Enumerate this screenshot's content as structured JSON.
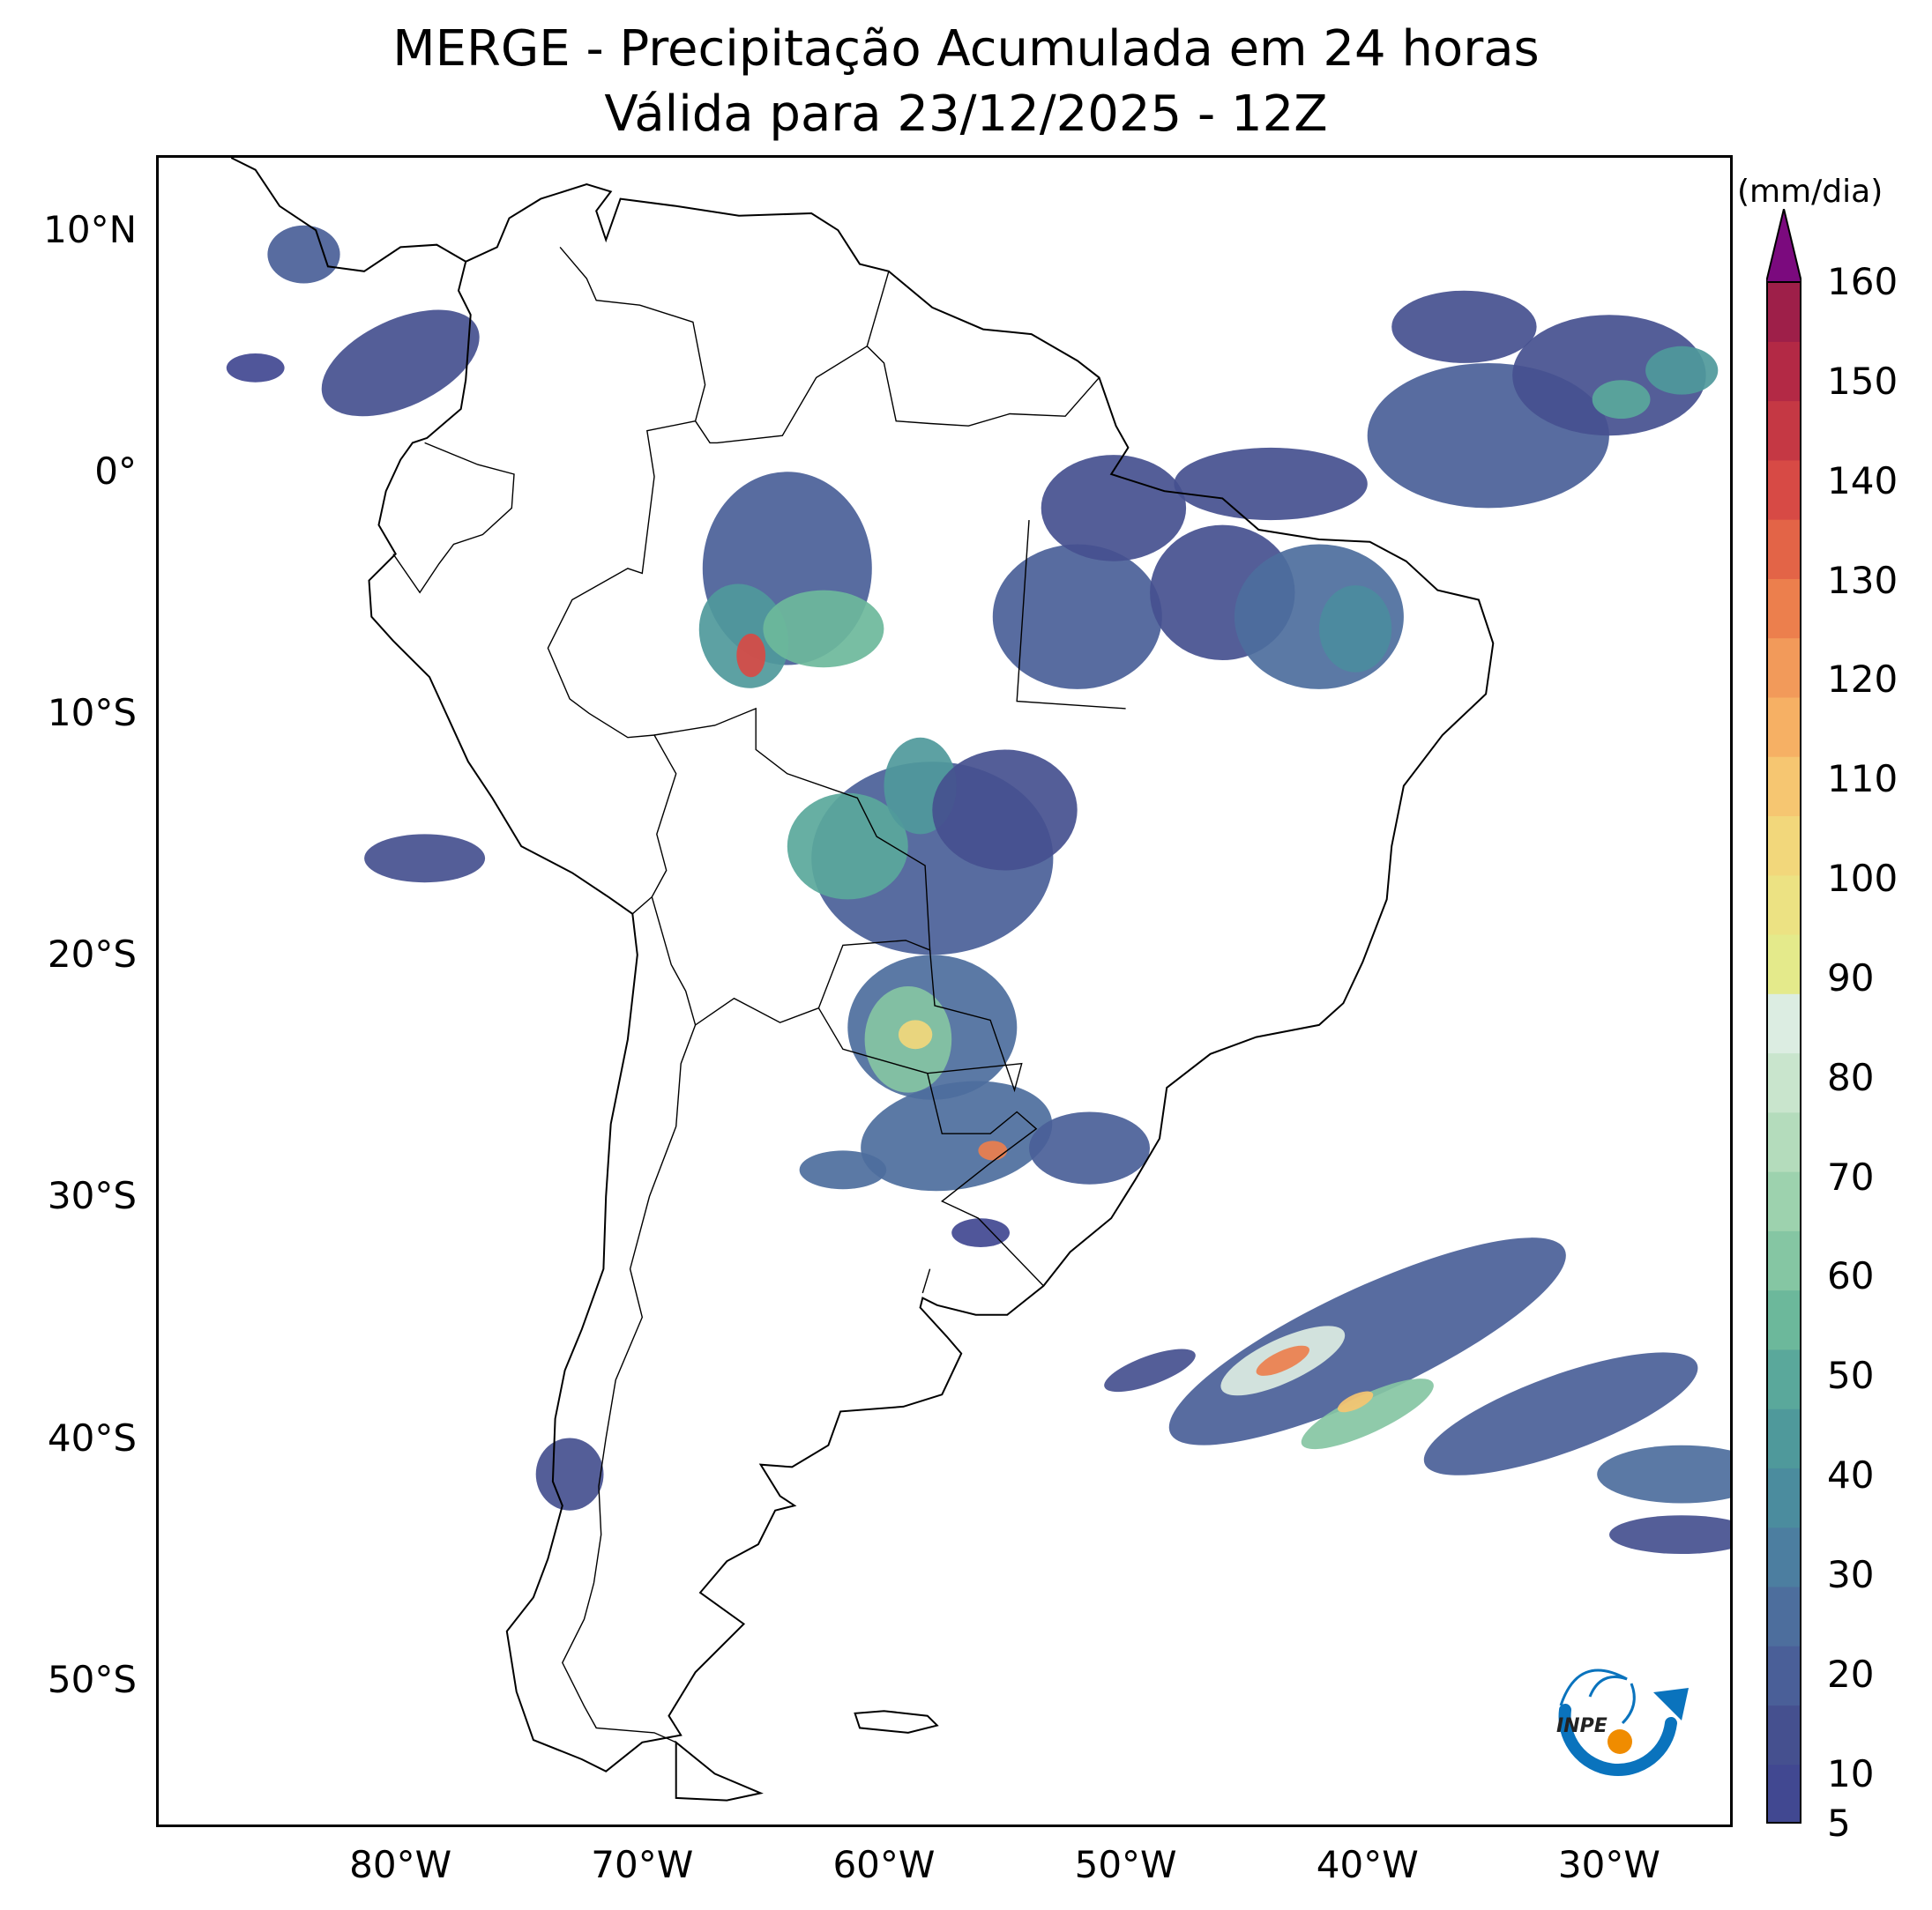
{
  "title": {
    "line1": "MERGE - Precipitação Acumulada em 24 horas",
    "line2": "Válida para 23/12/2025 - 12Z"
  },
  "map": {
    "lon_range": [
      -90,
      -25
    ],
    "lat_range": [
      -56,
      13
    ],
    "lat_ticks": [
      {
        "value": 10,
        "label": "10°N"
      },
      {
        "value": 0,
        "label": "0°"
      },
      {
        "value": -10,
        "label": "10°S"
      },
      {
        "value": -20,
        "label": "20°S"
      },
      {
        "value": -30,
        "label": "30°S"
      },
      {
        "value": -40,
        "label": "40°S"
      },
      {
        "value": -50,
        "label": "50°S"
      }
    ],
    "lon_ticks": [
      {
        "value": -80,
        "label": "80°W"
      },
      {
        "value": -70,
        "label": "70°W"
      },
      {
        "value": -60,
        "label": "60°W"
      },
      {
        "value": -50,
        "label": "50°W"
      },
      {
        "value": -40,
        "label": "40°W"
      },
      {
        "value": -30,
        "label": "30°W"
      }
    ],
    "land_outline_color": "#000000",
    "background_color": "#ffffff"
  },
  "colorbar": {
    "unit": "(mm/dia)",
    "min": 5,
    "max": 160,
    "extend": "max",
    "extend_color": "#7b0a7e",
    "ticks": [
      5,
      10,
      20,
      30,
      40,
      50,
      60,
      70,
      80,
      90,
      100,
      110,
      120,
      130,
      140,
      150,
      160
    ],
    "tick_labels": [
      "5",
      "10",
      "20",
      "30",
      "40",
      "50",
      "60",
      "70",
      "80",
      "90",
      "100",
      "110",
      "120",
      "130",
      "140",
      "150",
      "160"
    ],
    "colors": [
      "#414891",
      "#45508f",
      "#4a5f98",
      "#4d6e9d",
      "#4c7ea0",
      "#4b8c9e",
      "#4f999b",
      "#5aa89b",
      "#6cb89b",
      "#85c6a3",
      "#9dd2ae",
      "#b4dcbc",
      "#c9e5cd",
      "#dcede2",
      "#e4ea8b",
      "#ece283",
      "#f2d77b",
      "#f6c671",
      "#f6b064",
      "#f29a5a",
      "#ec7f4d",
      "#e36447",
      "#d74a45",
      "#c53844",
      "#b32945",
      "#9e1f49"
    ]
  },
  "logo": {
    "text": "INPE",
    "accent_color": "#f08c00",
    "arrow_color": "#0a73bd"
  }
}
